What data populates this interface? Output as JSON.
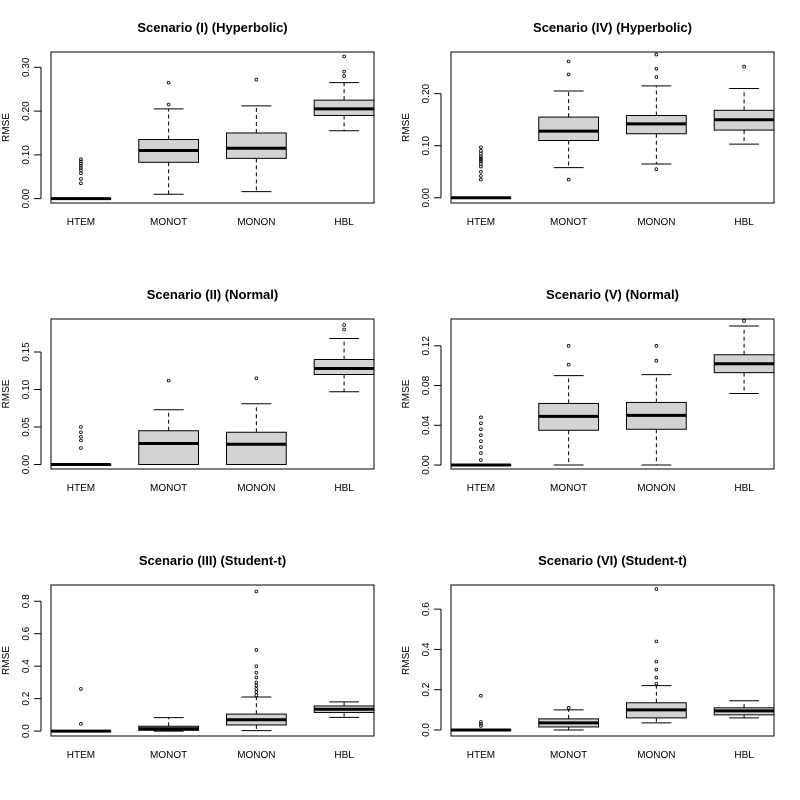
{
  "chart_data": [
    {
      "type": "boxplot",
      "title": "Scenario (I) (Hyperbolic)",
      "ylabel": "RMSE",
      "categories": [
        "HTEM",
        "MONOT",
        "MONON",
        "HBL"
      ],
      "ylim": [
        -0.01,
        0.335
      ],
      "yticks": [
        0.0,
        0.1,
        0.2,
        0.3
      ],
      "ytick_labels": [
        "0.00",
        "0.10",
        "0.20",
        "0.30"
      ],
      "boxes": [
        {
          "whislo": 0.0,
          "q1": 0.0,
          "med": 0.0,
          "q3": 0.0,
          "whishi": 0.0,
          "fliers": [
            0.035,
            0.045,
            0.058,
            0.065,
            0.07,
            0.075,
            0.08,
            0.085,
            0.09
          ]
        },
        {
          "whislo": 0.01,
          "q1": 0.083,
          "med": 0.11,
          "q3": 0.135,
          "whishi": 0.205,
          "fliers": [
            0.215,
            0.265
          ]
        },
        {
          "whislo": 0.016,
          "q1": 0.092,
          "med": 0.115,
          "q3": 0.15,
          "whishi": 0.212,
          "fliers": [
            0.272
          ]
        },
        {
          "whislo": 0.155,
          "q1": 0.19,
          "med": 0.205,
          "q3": 0.225,
          "whishi": 0.265,
          "fliers": [
            0.28,
            0.29,
            0.325
          ]
        }
      ]
    },
    {
      "type": "boxplot",
      "title": "Scenario (IV) (Hyperbolic)",
      "ylabel": "RMSE",
      "categories": [
        "HTEM",
        "MONOT",
        "MONON",
        "HBL"
      ],
      "ylim": [
        -0.01,
        0.28
      ],
      "yticks": [
        0.0,
        0.1,
        0.2
      ],
      "ytick_labels": [
        "0.00",
        "0.10",
        "0.20"
      ],
      "boxes": [
        {
          "whislo": 0.0,
          "q1": 0.0,
          "med": 0.0,
          "q3": 0.0,
          "whishi": 0.0,
          "fliers": [
            0.035,
            0.042,
            0.05,
            0.06,
            0.065,
            0.07,
            0.073,
            0.076,
            0.08,
            0.085,
            0.09,
            0.097
          ]
        },
        {
          "whislo": 0.058,
          "q1": 0.11,
          "med": 0.128,
          "q3": 0.155,
          "whishi": 0.205,
          "fliers": [
            0.035,
            0.237,
            0.262
          ]
        },
        {
          "whislo": 0.065,
          "q1": 0.123,
          "med": 0.142,
          "q3": 0.158,
          "whishi": 0.215,
          "fliers": [
            0.055,
            0.232,
            0.248,
            0.275
          ]
        },
        {
          "whislo": 0.103,
          "q1": 0.13,
          "med": 0.15,
          "q3": 0.168,
          "whishi": 0.21,
          "fliers": [
            0.252
          ]
        }
      ]
    },
    {
      "type": "boxplot",
      "title": "Scenario (II) (Normal)",
      "ylabel": "RMSE",
      "categories": [
        "HTEM",
        "MONOT",
        "MONON",
        "HBL"
      ],
      "ylim": [
        -0.006,
        0.194
      ],
      "yticks": [
        0.0,
        0.05,
        0.1,
        0.15
      ],
      "ytick_labels": [
        "0.00",
        "0.05",
        "0.10",
        "0.15"
      ],
      "boxes": [
        {
          "whislo": 0.0,
          "q1": 0.0,
          "med": 0.0,
          "q3": 0.0,
          "whishi": 0.0,
          "fliers": [
            0.022,
            0.032,
            0.037,
            0.043,
            0.05
          ]
        },
        {
          "whislo": 0.0,
          "q1": 0.0,
          "med": 0.028,
          "q3": 0.045,
          "whishi": 0.073,
          "fliers": [
            0.112
          ]
        },
        {
          "whislo": 0.0,
          "q1": 0.0,
          "med": 0.027,
          "q3": 0.043,
          "whishi": 0.081,
          "fliers": [
            0.115
          ]
        },
        {
          "whislo": 0.097,
          "q1": 0.12,
          "med": 0.128,
          "q3": 0.14,
          "whishi": 0.168,
          "fliers": [
            0.18,
            0.186
          ]
        }
      ]
    },
    {
      "type": "boxplot",
      "title": "Scenario (V) (Normal)",
      "ylabel": "RMSE",
      "categories": [
        "HTEM",
        "MONOT",
        "MONON",
        "HBL"
      ],
      "ylim": [
        -0.004,
        0.147
      ],
      "yticks": [
        0.0,
        0.04,
        0.08,
        0.12
      ],
      "ytick_labels": [
        "0.00",
        "0.04",
        "0.08",
        "0.12"
      ],
      "boxes": [
        {
          "whislo": 0.0,
          "q1": 0.0,
          "med": 0.0,
          "q3": 0.0,
          "whishi": 0.0,
          "fliers": [
            0.005,
            0.012,
            0.018,
            0.024,
            0.03,
            0.036,
            0.042,
            0.048
          ]
        },
        {
          "whislo": 0.0,
          "q1": 0.035,
          "med": 0.049,
          "q3": 0.062,
          "whishi": 0.09,
          "fliers": [
            0.101,
            0.12
          ]
        },
        {
          "whislo": 0.0,
          "q1": 0.036,
          "med": 0.05,
          "q3": 0.063,
          "whishi": 0.091,
          "fliers": [
            0.105,
            0.12
          ]
        },
        {
          "whislo": 0.072,
          "q1": 0.093,
          "med": 0.102,
          "q3": 0.111,
          "whishi": 0.14,
          "fliers": [
            0.145
          ]
        }
      ]
    },
    {
      "type": "boxplot",
      "title": "Scenario (III) (Student-t)",
      "ylabel": "RMSE",
      "categories": [
        "HTEM",
        "MONOT",
        "MONON",
        "HBL"
      ],
      "ylim": [
        -0.03,
        0.9
      ],
      "yticks": [
        0.0,
        0.2,
        0.4,
        0.6,
        0.8
      ],
      "ytick_labels": [
        "0.0",
        "0.2",
        "0.4",
        "0.6",
        "0.8"
      ],
      "boxes": [
        {
          "whislo": 0.0,
          "q1": 0.0,
          "med": 0.0,
          "q3": 0.0,
          "whishi": 0.0,
          "fliers": [
            0.045,
            0.26
          ]
        },
        {
          "whislo": 0.0,
          "q1": 0.005,
          "med": 0.015,
          "q3": 0.03,
          "whishi": 0.083,
          "fliers": []
        },
        {
          "whislo": 0.003,
          "q1": 0.038,
          "med": 0.07,
          "q3": 0.105,
          "whishi": 0.21,
          "fliers": [
            0.22,
            0.24,
            0.26,
            0.28,
            0.3,
            0.33,
            0.36,
            0.4,
            0.5,
            0.86
          ]
        },
        {
          "whislo": 0.085,
          "q1": 0.115,
          "med": 0.135,
          "q3": 0.155,
          "whishi": 0.18,
          "fliers": []
        }
      ]
    },
    {
      "type": "boxplot",
      "title": "Scenario (VI) (Student-t)",
      "ylabel": "RMSE",
      "categories": [
        "HTEM",
        "MONOT",
        "MONON",
        "HBL"
      ],
      "ylim": [
        -0.03,
        0.72
      ],
      "yticks": [
        0.0,
        0.2,
        0.4,
        0.6
      ],
      "ytick_labels": [
        "0.0",
        "0.2",
        "0.4",
        "0.6"
      ],
      "boxes": [
        {
          "whislo": 0.0,
          "q1": 0.0,
          "med": 0.0,
          "q3": 0.0,
          "whishi": 0.0,
          "fliers": [
            0.02,
            0.03,
            0.04,
            0.17
          ]
        },
        {
          "whislo": 0.0,
          "q1": 0.015,
          "med": 0.035,
          "q3": 0.055,
          "whishi": 0.1,
          "fliers": [
            0.11
          ]
        },
        {
          "whislo": 0.035,
          "q1": 0.06,
          "med": 0.1,
          "q3": 0.135,
          "whishi": 0.22,
          "fliers": [
            0.23,
            0.26,
            0.3,
            0.34,
            0.44,
            0.7
          ]
        },
        {
          "whislo": 0.06,
          "q1": 0.075,
          "med": 0.095,
          "q3": 0.11,
          "whishi": 0.145,
          "fliers": []
        }
      ]
    }
  ]
}
